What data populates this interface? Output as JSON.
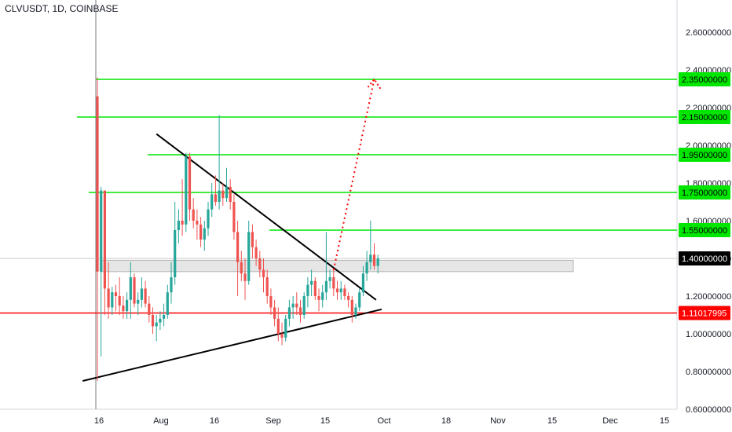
{
  "header": {
    "title": "CLVUSDT, 1D, COINBASE"
  },
  "colors": {
    "up": "#26a69a",
    "down": "#ef5350",
    "level_line": "#00e600",
    "level_badge": "#00e600",
    "support_line": "#ff0000",
    "current_badge": "#000000",
    "trendline": "#000000",
    "zone_fill": "#e6e6e6",
    "arrow": "#ff0000"
  },
  "chart_data": {
    "type": "candlestick",
    "symbol": "CLVUSDT",
    "timeframe": "1D",
    "exchange": "COINBASE",
    "ylim": [
      0.6,
      2.8
    ],
    "x_ticks": [
      "16",
      "Aug",
      "16",
      "Sep",
      "15",
      "Oct",
      "18",
      "Nov",
      "15",
      "Dec",
      "15"
    ],
    "y_ticks": [
      "0.60000000",
      "0.80000000",
      "1.00000000",
      "1.20000000",
      "1.40000000",
      "1.60000000",
      "1.80000000",
      "2.00000000",
      "2.20000000",
      "2.40000000",
      "2.60000000"
    ],
    "resistance_levels": [
      2.35,
      2.15,
      1.95,
      1.75,
      1.55
    ],
    "resistance_labels": [
      "2.35000000",
      "2.15000000",
      "1.95000000",
      "1.75000000",
      "1.55000000"
    ],
    "support_level": 1.11017995,
    "support_label": "1.11017995",
    "current_price": 1.4,
    "current_label": "1.40000000",
    "zone": [
      1.33,
      1.39
    ],
    "candles": [
      [
        2.26,
        2.36,
        0.75,
        1.33
      ],
      [
        1.33,
        1.78,
        0.88,
        1.76
      ],
      [
        1.76,
        1.76,
        1.1,
        1.24
      ],
      [
        1.24,
        1.38,
        1.08,
        1.14
      ],
      [
        1.14,
        1.25,
        1.1,
        1.22
      ],
      [
        1.22,
        1.26,
        1.12,
        1.2
      ],
      [
        1.2,
        1.3,
        1.1,
        1.15
      ],
      [
        1.15,
        1.2,
        1.08,
        1.12
      ],
      [
        1.12,
        1.22,
        1.08,
        1.18
      ],
      [
        1.18,
        1.38,
        1.08,
        1.3
      ],
      [
        1.3,
        1.32,
        1.14,
        1.16
      ],
      [
        1.16,
        1.22,
        1.1,
        1.18
      ],
      [
        1.18,
        1.3,
        1.14,
        1.24
      ],
      [
        1.24,
        1.28,
        1.14,
        1.16
      ],
      [
        1.16,
        1.2,
        1.06,
        1.1
      ],
      [
        1.1,
        1.14,
        1.0,
        1.04
      ],
      [
        1.04,
        1.1,
        0.96,
        1.06
      ],
      [
        1.06,
        1.12,
        1.02,
        1.08
      ],
      [
        1.08,
        1.16,
        1.04,
        1.1
      ],
      [
        1.1,
        1.26,
        1.08,
        1.22
      ],
      [
        1.22,
        1.38,
        1.16,
        1.3
      ],
      [
        1.3,
        1.7,
        1.26,
        1.55
      ],
      [
        1.55,
        1.66,
        1.48,
        1.6
      ],
      [
        1.6,
        1.82,
        1.52,
        1.58
      ],
      [
        1.58,
        1.96,
        1.54,
        1.94
      ],
      [
        1.94,
        1.96,
        1.6,
        1.66
      ],
      [
        1.66,
        1.72,
        1.56,
        1.6
      ],
      [
        1.6,
        1.66,
        1.5,
        1.58
      ],
      [
        1.58,
        1.62,
        1.46,
        1.5
      ],
      [
        1.5,
        1.6,
        1.44,
        1.56
      ],
      [
        1.56,
        1.7,
        1.52,
        1.66
      ],
      [
        1.66,
        1.8,
        1.62,
        1.74
      ],
      [
        1.74,
        1.84,
        1.68,
        1.7
      ],
      [
        1.7,
        2.16,
        1.66,
        1.76
      ],
      [
        1.76,
        1.8,
        1.68,
        1.72
      ],
      [
        1.72,
        1.88,
        1.7,
        1.78
      ],
      [
        1.78,
        1.82,
        1.66,
        1.7
      ],
      [
        1.7,
        1.74,
        1.5,
        1.54
      ],
      [
        1.54,
        1.6,
        1.2,
        1.38
      ],
      [
        1.38,
        1.44,
        1.28,
        1.32
      ],
      [
        1.32,
        1.4,
        1.18,
        1.28
      ],
      [
        1.28,
        1.6,
        1.26,
        1.54
      ],
      [
        1.54,
        1.58,
        1.4,
        1.46
      ],
      [
        1.46,
        1.5,
        1.36,
        1.4
      ],
      [
        1.4,
        1.44,
        1.3,
        1.34
      ],
      [
        1.34,
        1.4,
        1.22,
        1.3
      ],
      [
        1.3,
        1.34,
        1.16,
        1.2
      ],
      [
        1.2,
        1.24,
        1.1,
        1.14
      ],
      [
        1.14,
        1.18,
        1.04,
        1.08
      ],
      [
        1.08,
        1.14,
        0.96,
        1.0
      ],
      [
        1.0,
        1.06,
        0.94,
        0.98
      ],
      [
        0.98,
        1.1,
        0.96,
        1.08
      ],
      [
        1.08,
        1.18,
        1.04,
        1.14
      ],
      [
        1.14,
        1.2,
        1.08,
        1.16
      ],
      [
        1.16,
        1.22,
        1.1,
        1.14
      ],
      [
        1.14,
        1.18,
        1.06,
        1.1
      ],
      [
        1.1,
        1.22,
        1.08,
        1.2
      ],
      [
        1.2,
        1.3,
        1.14,
        1.26
      ],
      [
        1.26,
        1.34,
        1.2,
        1.28
      ],
      [
        1.28,
        1.3,
        1.18,
        1.2
      ],
      [
        1.2,
        1.24,
        1.12,
        1.18
      ],
      [
        1.18,
        1.26,
        1.14,
        1.22
      ],
      [
        1.22,
        1.54,
        1.18,
        1.28
      ],
      [
        1.28,
        1.34,
        1.24,
        1.3
      ],
      [
        1.3,
        1.34,
        1.2,
        1.24
      ],
      [
        1.24,
        1.28,
        1.18,
        1.22
      ],
      [
        1.22,
        1.28,
        1.18,
        1.24
      ],
      [
        1.24,
        1.26,
        1.18,
        1.2
      ],
      [
        1.2,
        1.22,
        1.14,
        1.18
      ],
      [
        1.18,
        1.2,
        1.06,
        1.1
      ],
      [
        1.1,
        1.16,
        1.08,
        1.14
      ],
      [
        1.14,
        1.24,
        1.12,
        1.22
      ],
      [
        1.22,
        1.36,
        1.2,
        1.32
      ],
      [
        1.32,
        1.44,
        1.28,
        1.38
      ],
      [
        1.38,
        1.6,
        1.34,
        1.42
      ],
      [
        1.42,
        1.48,
        1.34,
        1.36
      ],
      [
        1.36,
        1.42,
        1.32,
        1.4
      ]
    ],
    "trendlines": [
      {
        "from": [
          16,
          2.06
        ],
        "to": [
          75.5,
          1.18
        ]
      },
      {
        "from": [
          -4,
          0.75
        ],
        "to": [
          77,
          1.13
        ]
      }
    ],
    "projection_arrow": {
      "from": [
        64,
        1.34
      ],
      "to": [
        75,
        2.35
      ]
    }
  }
}
